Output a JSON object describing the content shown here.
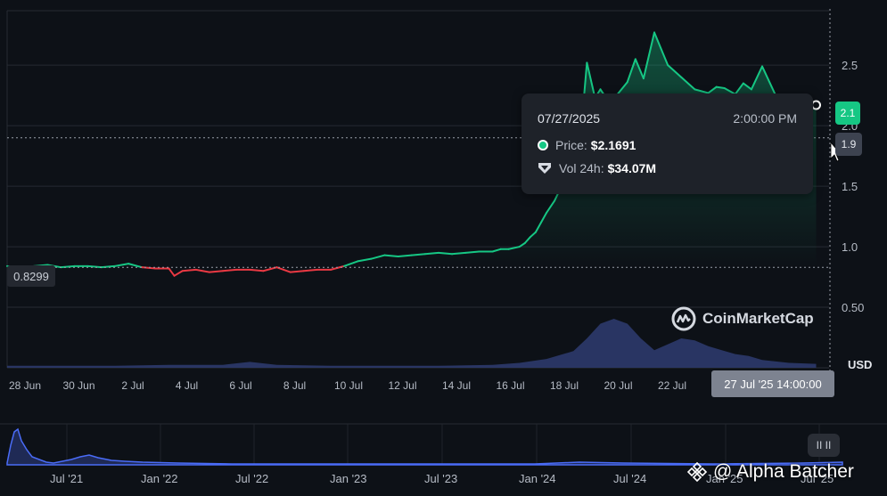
{
  "chart_data": {
    "type": "line",
    "ylim": [
      0,
      2.95
    ],
    "y_ticks": [
      "0.50",
      "1.0",
      "1.5",
      "2.0",
      "2.5"
    ],
    "y_tick_values": [
      0.5,
      1.0,
      1.5,
      2.0,
      2.5
    ],
    "x_ticks": [
      "28 Jun",
      "30 Jun",
      "2 Jul",
      "4 Jul",
      "6 Jul",
      "8 Jul",
      "10 Jul",
      "12 Jul",
      "14 Jul",
      "16 Jul",
      "18 Jul",
      "20 Jul",
      "22 Jul"
    ],
    "x_tick_days": [
      0,
      2,
      4,
      6,
      8,
      10,
      12,
      14,
      16,
      18,
      20,
      22,
      24
    ],
    "baseline_price": 0.8299,
    "cursor_price": 1.9,
    "current_price": 2.1,
    "series": [
      {
        "days": [
          0,
          0.5,
          1,
          1.5,
          2,
          2.5,
          3,
          3.5,
          4,
          4.5,
          5,
          5.5,
          6,
          6.2,
          6.5,
          7,
          7.5,
          8,
          8.5,
          9,
          9.5,
          10,
          10.5,
          11,
          11.5,
          12,
          12.5,
          13,
          13.5,
          14,
          14.5,
          15,
          15.5,
          16,
          16.5,
          17,
          17.5,
          18,
          18.3,
          18.6,
          19,
          19.2,
          19.4,
          19.6,
          19.8,
          20,
          20.3,
          20.6,
          21,
          21.3,
          21.5,
          21.8,
          22,
          22.3,
          22.6,
          23,
          23.3,
          23.6,
          24,
          24.5,
          25,
          25.5,
          26,
          26.3,
          26.6,
          27,
          27.3,
          27.6,
          28,
          28.5,
          29,
          29.5,
          30
        ],
        "values": [
          0.84,
          0.83,
          0.84,
          0.85,
          0.83,
          0.84,
          0.84,
          0.83,
          0.84,
          0.86,
          0.83,
          0.82,
          0.82,
          0.76,
          0.8,
          0.81,
          0.79,
          0.8,
          0.81,
          0.81,
          0.8,
          0.83,
          0.79,
          0.8,
          0.81,
          0.81,
          0.84,
          0.88,
          0.9,
          0.93,
          0.92,
          0.93,
          0.94,
          0.95,
          0.94,
          0.95,
          0.96,
          0.96,
          0.98,
          0.98,
          1.0,
          1.03,
          1.08,
          1.12,
          1.2,
          1.28,
          1.38,
          1.52,
          1.8,
          2.0,
          2.52,
          2.23,
          2.3,
          2.2,
          2.25,
          2.36,
          2.55,
          2.39,
          2.77,
          2.5,
          2.4,
          2.3,
          2.27,
          2.32,
          2.31,
          2.26,
          2.35,
          2.3,
          2.49,
          2.25,
          2.2,
          2.22,
          2.17
        ]
      }
    ],
    "volume": {
      "days": [
        0,
        2,
        4,
        6,
        8,
        9,
        10,
        12,
        14,
        16,
        18,
        19,
        20,
        21,
        21.5,
        22,
        22.5,
        23,
        23.5,
        24,
        24.5,
        25,
        25.5,
        26,
        26.5,
        27,
        27.5,
        28,
        29,
        30
      ],
      "values": [
        0.02,
        0.02,
        0.02,
        0.03,
        0.03,
        0.06,
        0.03,
        0.02,
        0.02,
        0.02,
        0.03,
        0.05,
        0.09,
        0.17,
        0.3,
        0.45,
        0.5,
        0.45,
        0.3,
        0.18,
        0.24,
        0.3,
        0.28,
        0.22,
        0.18,
        0.14,
        0.12,
        0.08,
        0.05,
        0.04
      ]
    }
  },
  "tooltip": {
    "date": "07/27/2025",
    "time": "2:00:00 PM",
    "price_label": "Price:",
    "price_value": "$2.1691",
    "vol_label": "Vol 24h:",
    "vol_value": "$34.07M"
  },
  "labels": {
    "baseline": "0.8299",
    "current_price": "2.1",
    "cursor_price": "1.9",
    "cursor_date": "27 Jul '25 14:00:00",
    "currency": "USD",
    "brand": "CoinMarketCap",
    "watermark": "@ Alpha Batcher"
  },
  "navigator": {
    "ticks": [
      "Jul '21",
      "Jan '22",
      "Jul '22",
      "Jan '23",
      "Jul '23",
      "Jan '24",
      "Jul '24",
      "Jan '25",
      "Jul '25"
    ],
    "handle_label": "II II"
  },
  "colors": {
    "up": "#16c784",
    "down": "#ea3943",
    "volume": "#2c3a6b",
    "navigator_line": "#4a6cf7"
  }
}
